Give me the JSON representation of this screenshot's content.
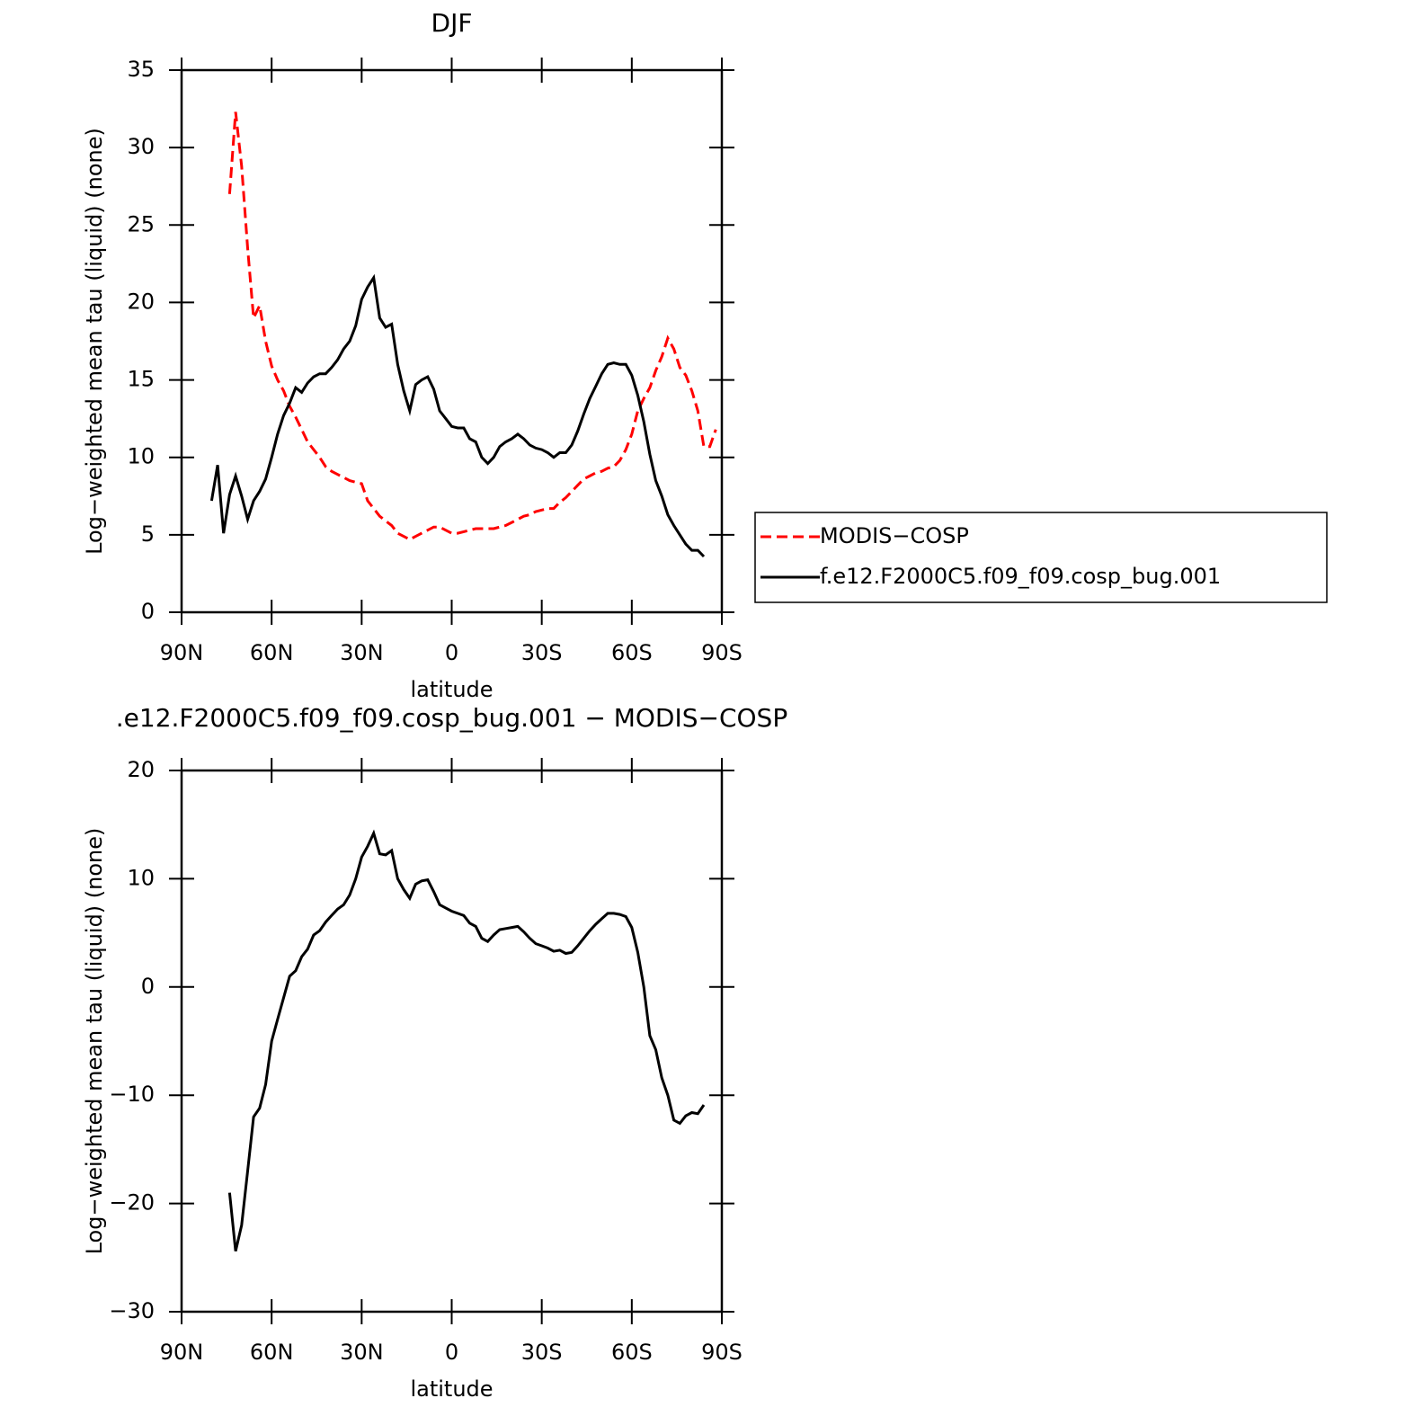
{
  "chart_data": [
    {
      "type": "line",
      "title": "DJF",
      "x_label": "latitude",
      "y_label": "Log−weighted mean tau (liquid) (none)",
      "xlim": [
        90,
        -90
      ],
      "xticks": [
        {
          "value": 90,
          "label": "90N"
        },
        {
          "value": 60,
          "label": "60N"
        },
        {
          "value": 30,
          "label": "30N"
        },
        0,
        {
          "value": -30,
          "label": "30S"
        },
        {
          "value": -60,
          "label": "60S"
        },
        {
          "value": -90,
          "label": "90S"
        }
      ],
      "ylim": [
        0,
        35
      ],
      "yticks": [
        0,
        5,
        10,
        15,
        20,
        25,
        30,
        35
      ],
      "legend": "outside-right",
      "x": [
        80,
        78,
        76,
        74,
        72,
        70,
        68,
        66,
        64,
        62,
        60,
        58,
        56,
        54,
        52,
        50,
        48,
        46,
        44,
        42,
        40,
        38,
        36,
        34,
        32,
        30,
        28,
        26,
        24,
        22,
        20,
        18,
        16,
        14,
        12,
        10,
        8,
        6,
        4,
        2,
        0,
        -2,
        -4,
        -6,
        -8,
        -10,
        -12,
        -14,
        -16,
        -18,
        -20,
        -22,
        -24,
        -26,
        -28,
        -30,
        -32,
        -34,
        -36,
        -38,
        -40,
        -42,
        -44,
        -46,
        -48,
        -50,
        -52,
        -54,
        -56,
        -58,
        -60,
        -62,
        -64,
        -66,
        -68,
        -70,
        -72,
        -74,
        -76,
        -78,
        -80,
        -82,
        -84,
        -86,
        -88
      ],
      "series": [
        {
          "name": "MODIS−COSP",
          "color": "#ff0000",
          "line_style": "dashed",
          "values": [
            null,
            null,
            null,
            27,
            32.3,
            28.8,
            23.5,
            19.0,
            19.8,
            17.5,
            15.9,
            15.0,
            14.3,
            13.3,
            12.6,
            11.8,
            11.0,
            10.5,
            10.0,
            9.4,
            9.1,
            8.9,
            8.7,
            8.5,
            8.4,
            8.3,
            7.2,
            6.7,
            6.2,
            5.9,
            5.6,
            5.1,
            4.9,
            4.7,
            4.9,
            5.1,
            5.3,
            5.5,
            5.5,
            5.3,
            5.1,
            5.1,
            5.2,
            5.3,
            5.4,
            5.4,
            5.4,
            5.4,
            5.5,
            5.6,
            5.8,
            6.0,
            6.2,
            6.3,
            6.5,
            6.6,
            6.7,
            6.7,
            7.1,
            7.4,
            7.8,
            8.2,
            8.6,
            8.8,
            9.0,
            9.1,
            9.3,
            9.4,
            9.8,
            10.5,
            11.5,
            13.0,
            13.8,
            14.5,
            15.6,
            16.5,
            17.7,
            17.0,
            15.8,
            15.3,
            14.3,
            13.0,
            10.7,
            10.7,
            11.8
          ]
        },
        {
          "name": "f.e12.F2000C5.f09_f09.cosp_bug.001",
          "color": "#000000",
          "line_style": "solid",
          "values": [
            7.2,
            9.5,
            5.1,
            7.6,
            8.8,
            7.5,
            6.0,
            7.2,
            7.8,
            8.6,
            10.0,
            11.5,
            12.7,
            13.5,
            14.5,
            14.2,
            14.8,
            15.2,
            15.4,
            15.4,
            15.8,
            16.3,
            17.0,
            17.5,
            18.5,
            20.2,
            21.0,
            21.6,
            19.0,
            18.4,
            18.6,
            16.0,
            14.3,
            13.0,
            14.7,
            15.0,
            15.2,
            14.4,
            13.0,
            12.5,
            12.0,
            11.9,
            11.9,
            11.2,
            11.0,
            10.0,
            9.6,
            10.0,
            10.7,
            11.0,
            11.2,
            11.5,
            11.2,
            10.8,
            10.6,
            10.5,
            10.3,
            10.0,
            10.3,
            10.3,
            10.8,
            11.7,
            12.8,
            13.8,
            14.6,
            15.4,
            16.0,
            16.1,
            16.0,
            16.0,
            15.3,
            14.0,
            12.3,
            10.2,
            8.5,
            7.5,
            6.3,
            5.6,
            5.0,
            4.4,
            4.0,
            4.0,
            3.6,
            null,
            null
          ]
        }
      ]
    },
    {
      "type": "line",
      "title": ".e12.F2000C5.f09_f09.cosp_bug.001 − MODIS−COSP",
      "x_label": "latitude",
      "y_label": "Log−weighted mean tau (liquid) (none)",
      "xlim": [
        90,
        -90
      ],
      "xticks": [
        {
          "value": 90,
          "label": "90N"
        },
        {
          "value": 60,
          "label": "60N"
        },
        {
          "value": 30,
          "label": "30N"
        },
        0,
        {
          "value": -30,
          "label": "30S"
        },
        {
          "value": -60,
          "label": "60S"
        },
        {
          "value": -90,
          "label": "90S"
        }
      ],
      "ylim": [
        -30,
        20
      ],
      "yticks": [
        {
          "value": -30,
          "label": "−30"
        },
        {
          "value": -20,
          "label": "−20"
        },
        {
          "value": -10,
          "label": "−10"
        },
        0,
        10,
        20
      ],
      "x": [
        80,
        78,
        76,
        74,
        72,
        70,
        68,
        66,
        64,
        62,
        60,
        58,
        56,
        54,
        52,
        50,
        48,
        46,
        44,
        42,
        40,
        38,
        36,
        34,
        32,
        30,
        28,
        26,
        24,
        22,
        20,
        18,
        16,
        14,
        12,
        10,
        8,
        6,
        4,
        2,
        0,
        -2,
        -4,
        -6,
        -8,
        -10,
        -12,
        -14,
        -16,
        -18,
        -20,
        -22,
        -24,
        -26,
        -28,
        -30,
        -32,
        -34,
        -36,
        -38,
        -40,
        -42,
        -44,
        -46,
        -48,
        -50,
        -52,
        -54,
        -56,
        -58,
        -60,
        -62,
        -64,
        -66,
        -68,
        -70,
        -72,
        -74,
        -76,
        -78,
        -80,
        -82,
        -84,
        -86,
        -88
      ],
      "series": [
        {
          "color": "#000000",
          "line_style": "solid",
          "values": [
            null,
            null,
            null,
            -19,
            -24.4,
            -22.0,
            -17,
            -12,
            -11.2,
            -9,
            -5,
            -3,
            -1,
            1.0,
            1.5,
            2.8,
            3.5,
            4.8,
            5.2,
            6.0,
            6.6,
            7.2,
            7.6,
            8.5,
            10.0,
            12.0,
            13.0,
            14.2,
            12.3,
            12.2,
            12.6,
            10.0,
            9.0,
            8.2,
            9.5,
            9.8,
            9.9,
            8.8,
            7.6,
            7.3,
            7.0,
            6.8,
            6.6,
            5.9,
            5.6,
            4.5,
            4.2,
            4.8,
            5.3,
            5.4,
            5.5,
            5.6,
            5.1,
            4.5,
            4.0,
            3.8,
            3.6,
            3.3,
            3.4,
            3.1,
            3.2,
            3.8,
            4.5,
            5.2,
            5.8,
            6.3,
            6.8,
            6.8,
            6.7,
            6.5,
            5.5,
            3.2,
            0,
            -4.5,
            -5.8,
            -8.4,
            -10,
            -12.3,
            -12.6,
            -11.9,
            -11.6,
            -11.7,
            -10.9,
            null,
            null
          ]
        }
      ]
    }
  ]
}
